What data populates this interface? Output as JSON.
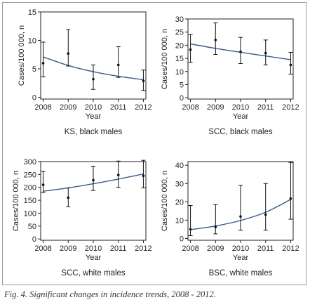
{
  "caption": "Fig. 4. Significant changes in incidence trends, 2008 - 2012.",
  "colors": {
    "trend_line": "#3a5a8c",
    "marker": "#111111",
    "axis": "#222222"
  },
  "chart_data": [
    {
      "type": "scatter",
      "title": "KS, black males",
      "xlabel": "Year",
      "ylabel": "Cases/100 000, n",
      "x": [
        2008,
        2009,
        2010,
        2011,
        2012
      ],
      "xticks": [
        "2008",
        "2009",
        "2010",
        "2011",
        "2012"
      ],
      "ylim": [
        -0.3,
        15
      ],
      "yticks": [
        0,
        5,
        10,
        15
      ],
      "points": [
        6.0,
        7.7,
        3.2,
        5.7,
        2.9
      ],
      "error_low": [
        3.6,
        5.5,
        1.4,
        3.5,
        1.2
      ],
      "error_high": [
        9.7,
        11.9,
        5.7,
        8.9,
        4.8
      ],
      "trend": [
        7.1,
        5.6,
        4.5,
        3.7,
        3.1
      ],
      "grid": false
    },
    {
      "type": "scatter",
      "title": "SCC, black males",
      "xlabel": "Year",
      "ylabel": "Cases/100 000, n",
      "x": [
        2008,
        2009,
        2010,
        2011,
        2012
      ],
      "xticks": [
        "2008",
        "2009",
        "2010",
        "2011",
        "2012"
      ],
      "ylim": [
        -0.5,
        30
      ],
      "yticks": [
        0,
        5,
        10,
        15,
        20,
        25,
        30
      ],
      "points": [
        18.3,
        22.0,
        17.5,
        17.0,
        12.5
      ],
      "error_low": [
        13.5,
        16.5,
        13.0,
        12.5,
        9.0
      ],
      "error_high": [
        24.0,
        28.5,
        23.0,
        22.0,
        17.3
      ],
      "trend": [
        20.5,
        18.8,
        17.3,
        15.9,
        14.5
      ],
      "grid": false
    },
    {
      "type": "scatter",
      "title": "SCC, white males",
      "xlabel": "Year",
      "ylabel": "Cases/100 000, n",
      "x": [
        2008,
        2009,
        2010,
        2011,
        2012
      ],
      "xticks": [
        "2008",
        "2009",
        "2010",
        "2011",
        "2012"
      ],
      "ylim": [
        -5,
        300
      ],
      "yticks": [
        0,
        50,
        100,
        150,
        200,
        250,
        300
      ],
      "points": [
        210,
        160,
        228,
        248,
        245
      ],
      "error_low": [
        180,
        125,
        188,
        200,
        198
      ],
      "error_high": [
        262,
        198,
        282,
        302,
        305
      ],
      "trend": [
        185,
        198,
        214,
        232,
        252
      ],
      "grid": false
    },
    {
      "type": "scatter",
      "title": "BSC, white males",
      "xlabel": "Year",
      "ylabel": "Cases/100 000, n",
      "x": [
        2008,
        2009,
        2010,
        2011,
        2012
      ],
      "xticks": [
        "2008",
        "2009",
        "2010",
        "2011",
        "2012"
      ],
      "ylim": [
        -1,
        42
      ],
      "yticks": [
        0,
        10,
        20,
        30,
        40
      ],
      "points": [
        5.0,
        6.3,
        12.0,
        13.0,
        21.8
      ],
      "error_low": [
        1.5,
        2.5,
        4.5,
        4.5,
        10.5
      ],
      "error_high": [
        18.0,
        18.5,
        29.0,
        30.0,
        41.5
      ],
      "trend": [
        4.8,
        6.8,
        9.8,
        14.3,
        21.3
      ],
      "grid": false
    }
  ]
}
